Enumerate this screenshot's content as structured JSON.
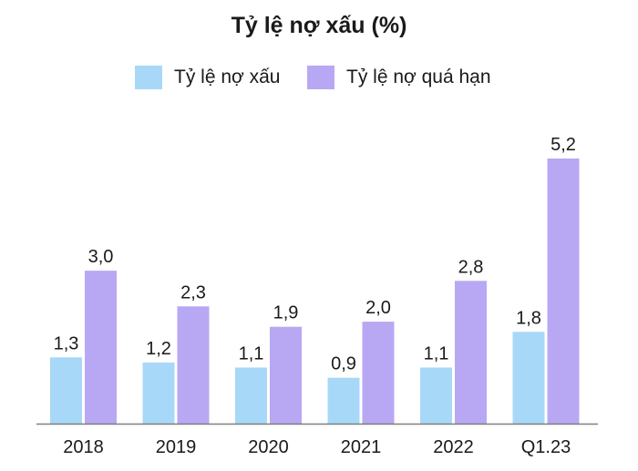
{
  "colors": {
    "series_1": "#a8d8f8",
    "series_2": "#b8a8f4",
    "axis": "#7f7f7f",
    "text": "#1a1a1a"
  },
  "chart_data": {
    "type": "bar",
    "title": "Tỷ lệ nợ xấu (%)",
    "xlabel": "",
    "ylabel": "",
    "categories": [
      "2018",
      "2019",
      "2020",
      "2021",
      "2022",
      "Q1.23"
    ],
    "series": [
      {
        "name": "Tỷ lệ nợ xấu",
        "values": [
          1.3,
          1.2,
          1.1,
          0.9,
          1.1,
          1.8
        ],
        "labels": [
          "1,3",
          "1,2",
          "1,1",
          "0,9",
          "1,1",
          "1,8"
        ]
      },
      {
        "name": "Tỷ lệ nợ quá hạn",
        "values": [
          3.0,
          2.3,
          1.9,
          2.0,
          2.8,
          5.2
        ],
        "labels": [
          "3,0",
          "2,3",
          "1,9",
          "2,0",
          "2,8",
          "5,2"
        ]
      }
    ],
    "ylim": [
      0,
      5.2
    ],
    "grid": false,
    "legend": "top-center"
  }
}
